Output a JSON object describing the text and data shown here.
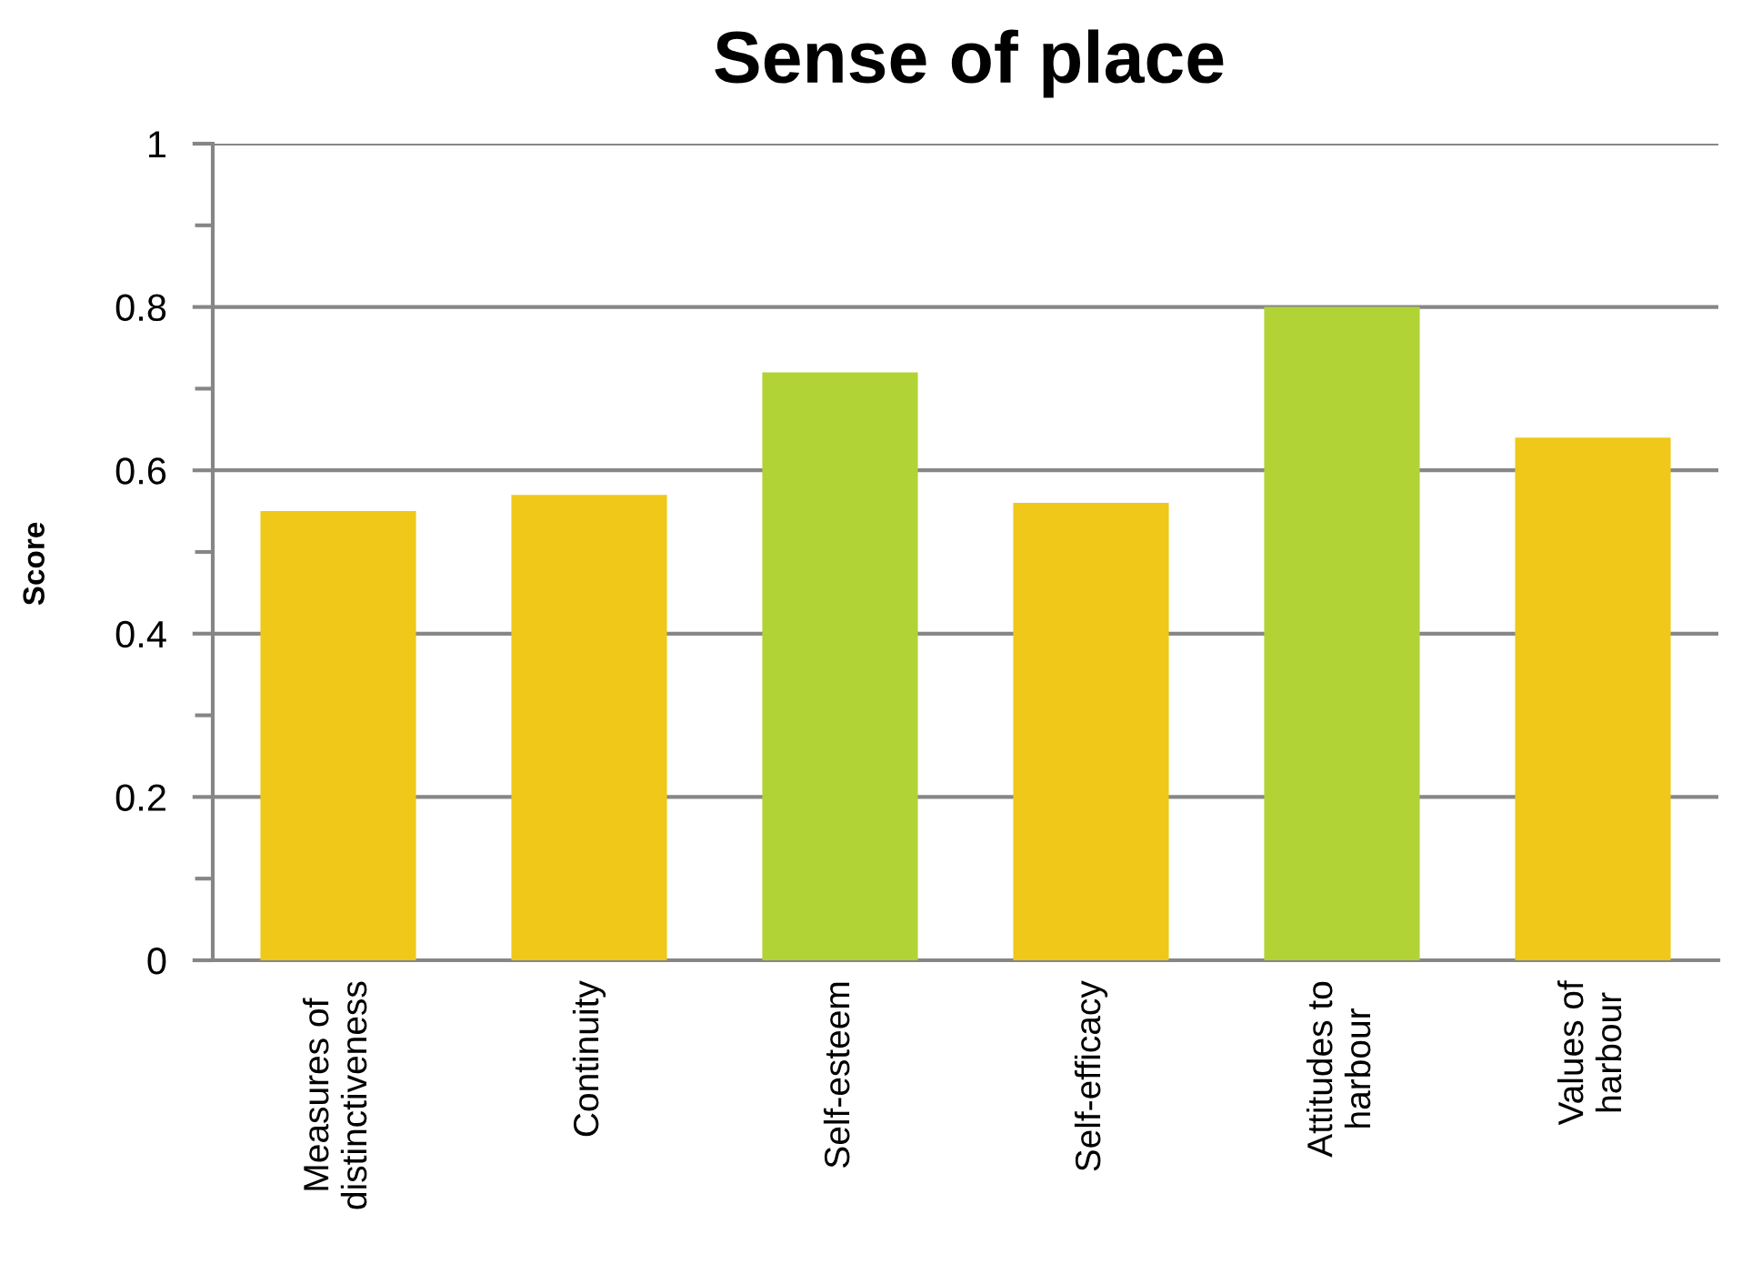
{
  "chart_data": {
    "type": "bar",
    "title": "Sense of place",
    "ylabel": "Score",
    "categories": [
      "Measures of\ndistinctiveness",
      "Continuity",
      "Self-esteem",
      "Self-efficacy",
      "Attitudes to\nharbour",
      "Values of\nharbour"
    ],
    "values": [
      0.55,
      0.57,
      0.72,
      0.56,
      0.8,
      0.64
    ],
    "colors": [
      "#efc819",
      "#efc819",
      "#b1d335",
      "#efc819",
      "#b1d335",
      "#efc819"
    ],
    "ylim": [
      0,
      1
    ],
    "yticks": [
      0,
      {
        "value": 0.1,
        "label": null
      },
      0.2,
      {
        "value": 0.3,
        "label": null
      },
      0.4,
      {
        "value": 0.5,
        "label": null
      },
      0.6,
      {
        "value": 0.7,
        "label": null
      },
      0.8,
      {
        "value": 0.9,
        "label": null
      },
      1
    ],
    "grid": "y"
  }
}
